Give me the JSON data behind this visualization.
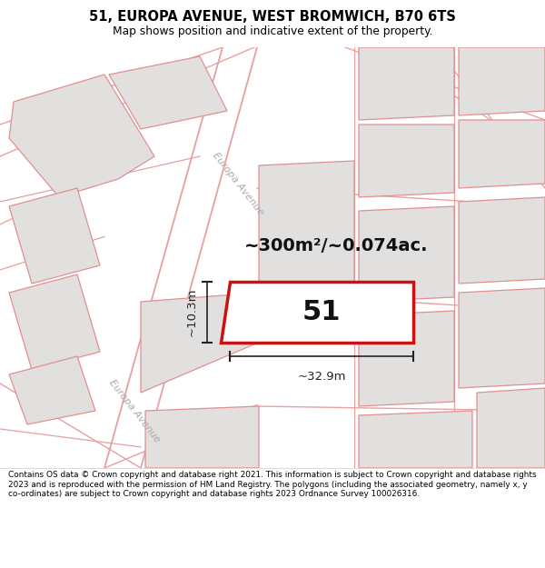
{
  "title": "51, EUROPA AVENUE, WEST BROMWICH, B70 6TS",
  "subtitle": "Map shows position and indicative extent of the property.",
  "footer": "Contains OS data © Crown copyright and database right 2021. This information is subject to Crown copyright and database rights 2023 and is reproduced with the permission of HM Land Registry. The polygons (including the associated geometry, namely x, y co-ordinates) are subject to Crown copyright and database rights 2023 Ordnance Survey 100026316.",
  "map_bg": "#f7f6f6",
  "road_line_color": "#e8a0a0",
  "plot_fill": "#ffffff",
  "plot_edge": "#cc1111",
  "other_fill": "#e2dfdf",
  "other_edge": "#e09090",
  "area_text": "~300m²/~0.074ac.",
  "number_text": "51",
  "dim_width": "~32.9m",
  "dim_height": "~10.3m",
  "road_label": "Europa Avenue",
  "footer_bg": "#ffffff",
  "title_bg": "#ffffff",
  "dim_color": "#222222",
  "road_label_color": "#aaaaaa"
}
